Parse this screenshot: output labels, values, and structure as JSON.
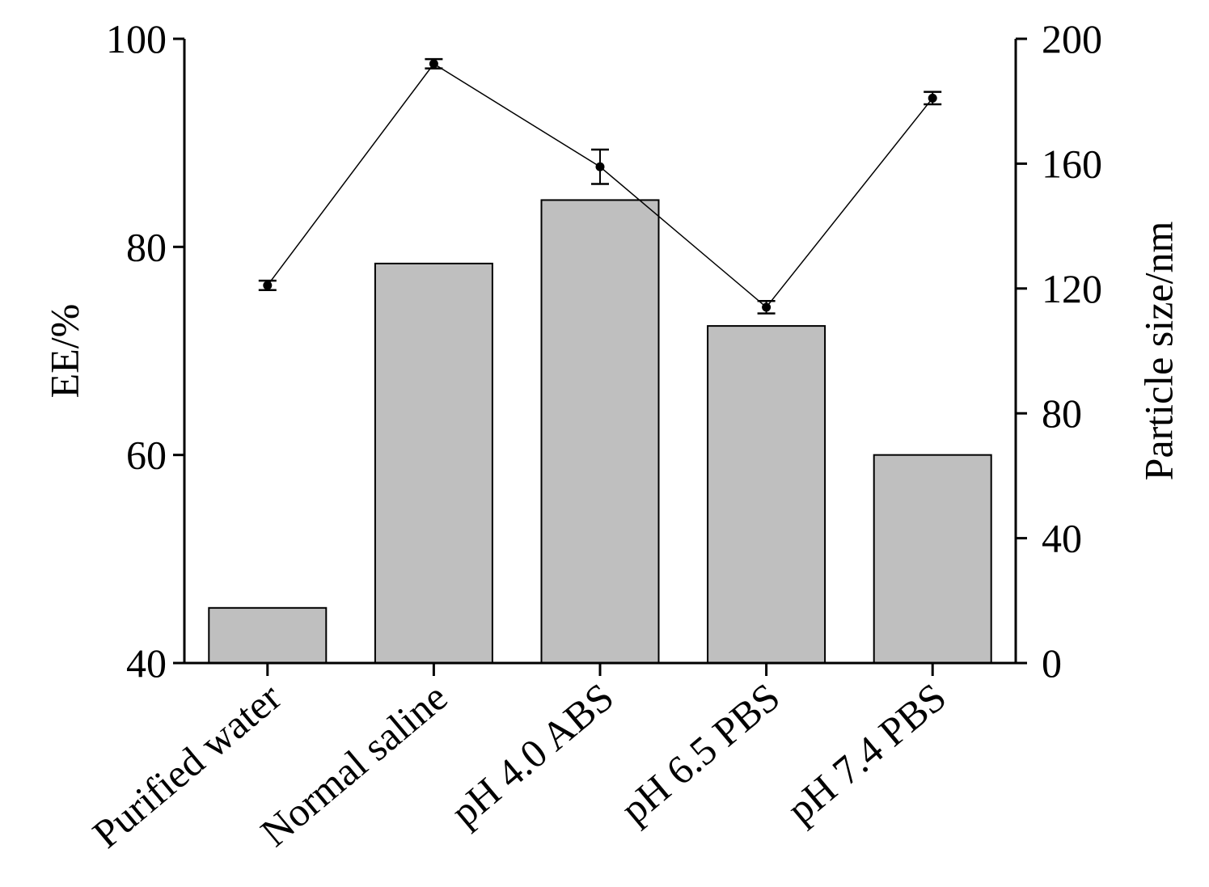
{
  "chart_data": {
    "type": "bar",
    "categories": [
      "Purified water",
      "Normal saline",
      "pH 4.0 ABS",
      "pH 6.5 PBS",
      "pH 7.4 PBS"
    ],
    "series": [
      {
        "type": "bar",
        "axis": "left",
        "values": [
          45.3,
          78.4,
          84.5,
          72.4,
          60.0
        ],
        "color": "#bfbfbf"
      },
      {
        "type": "line",
        "axis": "right",
        "values": [
          121,
          192,
          159,
          114,
          181
        ],
        "errors": [
          1.5,
          1.5,
          5.5,
          2.0,
          2.0
        ],
        "color": "#000000"
      }
    ],
    "ylabel": "EE/%",
    "ylabel_right": "Particle size/nm",
    "ylim": [
      40,
      100
    ],
    "ylim_right": [
      0,
      200
    ],
    "yticks": [
      "100",
      "80",
      "60",
      "40"
    ],
    "yticks_right": [
      "200",
      "160",
      "120",
      "80",
      "40",
      "0"
    ],
    "grid": false,
    "legend": "none"
  }
}
